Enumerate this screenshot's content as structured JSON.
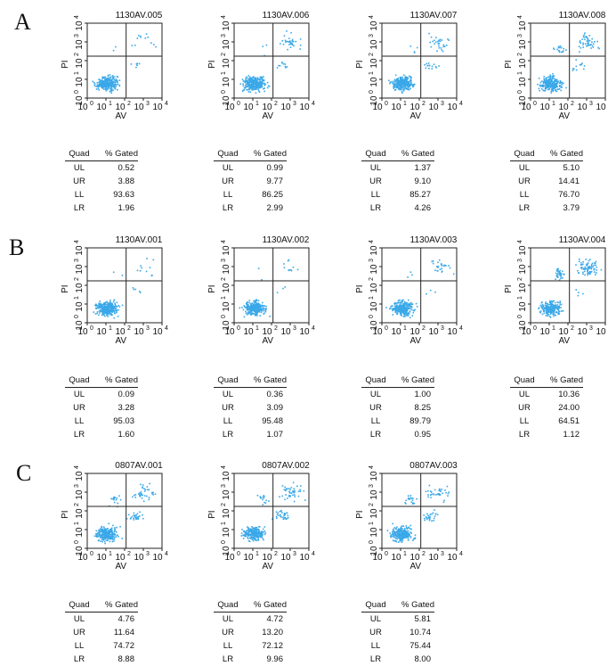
{
  "panel_labels": [
    "A",
    "B",
    "C"
  ],
  "quad_header": "Quad",
  "gated_header": "% Gated",
  "x_axis_label": "AV",
  "y_axis_label": "PI",
  "tick_labels": [
    "0",
    "1",
    "2",
    "3",
    "4"
  ],
  "point_color": "#3aa8e8",
  "chart_data": [
    {
      "type": "scatter",
      "group": "A",
      "title": "1130AV.005",
      "xlabel": "AV",
      "ylabel": "PI",
      "log_scale": true,
      "xlim": [
        1,
        10000
      ],
      "ylim": [
        1,
        10000
      ],
      "quadrants": [
        {
          "quad": "UL",
          "gated": "0.52"
        },
        {
          "quad": "UR",
          "gated": "3.88"
        },
        {
          "quad": "LL",
          "gated": "93.63"
        },
        {
          "quad": "LR",
          "gated": "1.96"
        }
      ]
    },
    {
      "type": "scatter",
      "group": "A",
      "title": "1130AV.006",
      "xlabel": "AV",
      "ylabel": "PI",
      "log_scale": true,
      "xlim": [
        1,
        10000
      ],
      "ylim": [
        1,
        10000
      ],
      "quadrants": [
        {
          "quad": "UL",
          "gated": "0.99"
        },
        {
          "quad": "UR",
          "gated": "9.77"
        },
        {
          "quad": "LL",
          "gated": "86.25"
        },
        {
          "quad": "LR",
          "gated": "2.99"
        }
      ]
    },
    {
      "type": "scatter",
      "group": "A",
      "title": "1130AV.007",
      "xlabel": "AV",
      "ylabel": "PI",
      "log_scale": true,
      "xlim": [
        1,
        10000
      ],
      "ylim": [
        1,
        10000
      ],
      "quadrants": [
        {
          "quad": "UL",
          "gated": "1.37"
        },
        {
          "quad": "UR",
          "gated": "9.10"
        },
        {
          "quad": "LL",
          "gated": "85.27"
        },
        {
          "quad": "LR",
          "gated": "4.26"
        }
      ]
    },
    {
      "type": "scatter",
      "group": "A",
      "title": "1130AV.008",
      "xlabel": "AV",
      "ylabel": "PI",
      "log_scale": true,
      "xlim": [
        1,
        10000
      ],
      "ylim": [
        1,
        10000
      ],
      "quadrants": [
        {
          "quad": "UL",
          "gated": "5.10"
        },
        {
          "quad": "UR",
          "gated": "14.41"
        },
        {
          "quad": "LL",
          "gated": "76.70"
        },
        {
          "quad": "LR",
          "gated": "3.79"
        }
      ]
    },
    {
      "type": "scatter",
      "group": "B",
      "title": "1130AV.001",
      "xlabel": "AV",
      "ylabel": "PI",
      "log_scale": true,
      "xlim": [
        1,
        10000
      ],
      "ylim": [
        1,
        10000
      ],
      "quadrants": [
        {
          "quad": "UL",
          "gated": "0.09"
        },
        {
          "quad": "UR",
          "gated": "3.28"
        },
        {
          "quad": "LL",
          "gated": "95.03"
        },
        {
          "quad": "LR",
          "gated": "1.60"
        }
      ]
    },
    {
      "type": "scatter",
      "group": "B",
      "title": "1130AV.002",
      "xlabel": "AV",
      "ylabel": "PI",
      "log_scale": true,
      "xlim": [
        1,
        10000
      ],
      "ylim": [
        1,
        10000
      ],
      "quadrants": [
        {
          "quad": "UL",
          "gated": "0.36"
        },
        {
          "quad": "UR",
          "gated": "3.09"
        },
        {
          "quad": "LL",
          "gated": "95.48"
        },
        {
          "quad": "LR",
          "gated": "1.07"
        }
      ]
    },
    {
      "type": "scatter",
      "group": "B",
      "title": "1130AV.003",
      "xlabel": "AV",
      "ylabel": "PI",
      "log_scale": true,
      "xlim": [
        1,
        10000
      ],
      "ylim": [
        1,
        10000
      ],
      "quadrants": [
        {
          "quad": "UL",
          "gated": "1.00"
        },
        {
          "quad": "UR",
          "gated": "8.25"
        },
        {
          "quad": "LL",
          "gated": "89.79"
        },
        {
          "quad": "LR",
          "gated": "0.95"
        }
      ]
    },
    {
      "type": "scatter",
      "group": "B",
      "title": "1130AV.004",
      "xlabel": "AV",
      "ylabel": "PI",
      "log_scale": true,
      "xlim": [
        1,
        10000
      ],
      "ylim": [
        1,
        10000
      ],
      "quadrants": [
        {
          "quad": "UL",
          "gated": "10.36"
        },
        {
          "quad": "UR",
          "gated": "24.00"
        },
        {
          "quad": "LL",
          "gated": "64.51"
        },
        {
          "quad": "LR",
          "gated": "1.12"
        }
      ]
    },
    {
      "type": "scatter",
      "group": "C",
      "title": "0807AV.001",
      "xlabel": "AV",
      "ylabel": "PI",
      "log_scale": true,
      "xlim": [
        1,
        10000
      ],
      "ylim": [
        1,
        10000
      ],
      "quadrants": [
        {
          "quad": "UL",
          "gated": "4.76"
        },
        {
          "quad": "UR",
          "gated": "11.64"
        },
        {
          "quad": "LL",
          "gated": "74.72"
        },
        {
          "quad": "LR",
          "gated": "8.88"
        }
      ]
    },
    {
      "type": "scatter",
      "group": "C",
      "title": "0807AV.002",
      "xlabel": "AV",
      "ylabel": "PI",
      "log_scale": true,
      "xlim": [
        1,
        10000
      ],
      "ylim": [
        1,
        10000
      ],
      "quadrants": [
        {
          "quad": "UL",
          "gated": "4.72"
        },
        {
          "quad": "UR",
          "gated": "13.20"
        },
        {
          "quad": "LL",
          "gated": "72.12"
        },
        {
          "quad": "LR",
          "gated": "9.96"
        }
      ]
    },
    {
      "type": "scatter",
      "group": "C",
      "title": "0807AV.003",
      "xlabel": "AV",
      "ylabel": "PI",
      "log_scale": true,
      "xlim": [
        1,
        10000
      ],
      "ylim": [
        1,
        10000
      ],
      "quadrants": [
        {
          "quad": "UL",
          "gated": "5.81"
        },
        {
          "quad": "UR",
          "gated": "10.74"
        },
        {
          "quad": "LL",
          "gated": "75.44"
        },
        {
          "quad": "LR",
          "gated": "8.00"
        }
      ]
    }
  ]
}
